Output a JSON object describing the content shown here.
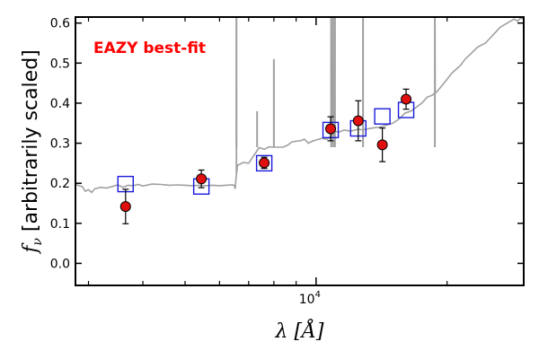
{
  "chart_data": {
    "type": "scatter",
    "title": "",
    "xlabel": "λ [Å]",
    "ylabel": "f_ν [arbitrarily scaled]",
    "ylabel_parts": {
      "symbol": "f",
      "subscript": "ν",
      "text": "[arbitrarily scaled]"
    },
    "xlabel_parts": {
      "symbol": "λ",
      "unit": "[Å]"
    },
    "xscale": "log",
    "xlim": [
      2800,
      30000
    ],
    "ylim": [
      -0.055,
      0.615
    ],
    "x_tick_labels": [
      {
        "value": 10000,
        "base": "10",
        "exp": "4"
      }
    ],
    "x_minor_ticks": [
      3000,
      4000,
      5000,
      6000,
      7000,
      8000,
      9000,
      20000,
      30000
    ],
    "y_ticks": [
      0.0,
      0.1,
      0.2,
      0.3,
      0.4,
      0.5,
      0.6
    ],
    "y_tick_labels": [
      "0.0",
      "0.1",
      "0.2",
      "0.3",
      "0.4",
      "0.5",
      "0.6"
    ],
    "annotation": {
      "text": "EAZY best-fit",
      "color": "#ff0000",
      "position": "top-left"
    },
    "colors": {
      "template": "#a0a0a0",
      "model_box": "#1a1adb",
      "observed_fill": "#e01010",
      "errorbar": "#000000"
    },
    "series": [
      {
        "kind": "template",
        "x": [
          2800,
          2900,
          2950,
          3000,
          3050,
          3100,
          3200,
          3300,
          3400,
          3500,
          3600,
          3700,
          3800,
          3900,
          4000,
          4200,
          4400,
          4600,
          4800,
          5000,
          5200,
          5400,
          5600,
          5800,
          6000,
          6200,
          6400,
          6480,
          6520,
          6560,
          6563,
          6566,
          6600,
          6700,
          6800,
          7000,
          7200,
          7400,
          7600,
          7800,
          8000,
          8200,
          8400,
          8600,
          8800,
          9000,
          9200,
          9400,
          9600,
          9800,
          10000,
          10300,
          10600,
          10900,
          10940,
          10960,
          11000,
          11300,
          11600,
          12000,
          12500,
          12820,
          13000,
          13500,
          14000,
          14500,
          15000,
          15500,
          16000,
          16500,
          17000,
          17500,
          18000,
          18500,
          18750,
          18760,
          18780,
          19000,
          19500,
          20000,
          20500,
          21000,
          21500,
          21660,
          22000,
          22500,
          23000,
          23500,
          24000,
          24500,
          25000,
          25500,
          26000,
          26500,
          27000,
          27500,
          28000,
          28500,
          29000,
          29500,
          30000
        ],
        "y": [
          0.197,
          0.192,
          0.18,
          0.184,
          0.177,
          0.186,
          0.19,
          0.188,
          0.192,
          0.196,
          0.19,
          0.195,
          0.194,
          0.197,
          0.193,
          0.198,
          0.197,
          0.195,
          0.196,
          0.195,
          0.194,
          0.195,
          0.194,
          0.195,
          0.194,
          0.195,
          0.196,
          0.195,
          0.186,
          0.223,
          0.61,
          0.223,
          0.245,
          0.248,
          0.252,
          0.25,
          0.27,
          0.289,
          0.285,
          0.291,
          0.29,
          0.29,
          0.29,
          0.295,
          0.303,
          0.305,
          0.306,
          0.31,
          0.3,
          0.305,
          0.308,
          0.312,
          0.31,
          0.32,
          0.61,
          0.32,
          0.33,
          0.328,
          0.333,
          0.33,
          0.335,
          0.333,
          0.335,
          0.338,
          0.34,
          0.345,
          0.35,
          0.36,
          0.375,
          0.38,
          0.39,
          0.4,
          0.415,
          0.42,
          0.425,
          0.61,
          0.425,
          0.43,
          0.445,
          0.46,
          0.475,
          0.485,
          0.495,
          0.5,
          0.51,
          0.52,
          0.53,
          0.54,
          0.545,
          0.55,
          0.56,
          0.57,
          0.58,
          0.59,
          0.595,
          0.6,
          0.605,
          0.61,
          0.605,
          0.612,
          0.61
        ]
      },
      {
        "kind": "template-spikes",
        "x": [
          6563,
          7320,
          8000,
          10830,
          10940,
          11050,
          12820,
          18750
        ],
        "y": [
          0.62,
          0.38,
          0.51,
          0.62,
          0.62,
          0.62,
          0.62,
          0.62
        ]
      },
      {
        "kind": "model",
        "x": [
          3650,
          5450,
          7600,
          10800,
          12500,
          14200,
          16100
        ],
        "y": [
          0.198,
          0.192,
          0.25,
          0.333,
          0.337,
          0.367,
          0.383
        ]
      },
      {
        "kind": "observed",
        "x": [
          3650,
          5450,
          7600,
          10800,
          12500,
          14200,
          16100
        ],
        "y": [
          0.142,
          0.211,
          0.251,
          0.336,
          0.356,
          0.296,
          0.41
        ],
        "yerr": [
          0.043,
          0.022,
          0.014,
          0.03,
          0.05,
          0.042,
          0.025
        ]
      }
    ]
  }
}
